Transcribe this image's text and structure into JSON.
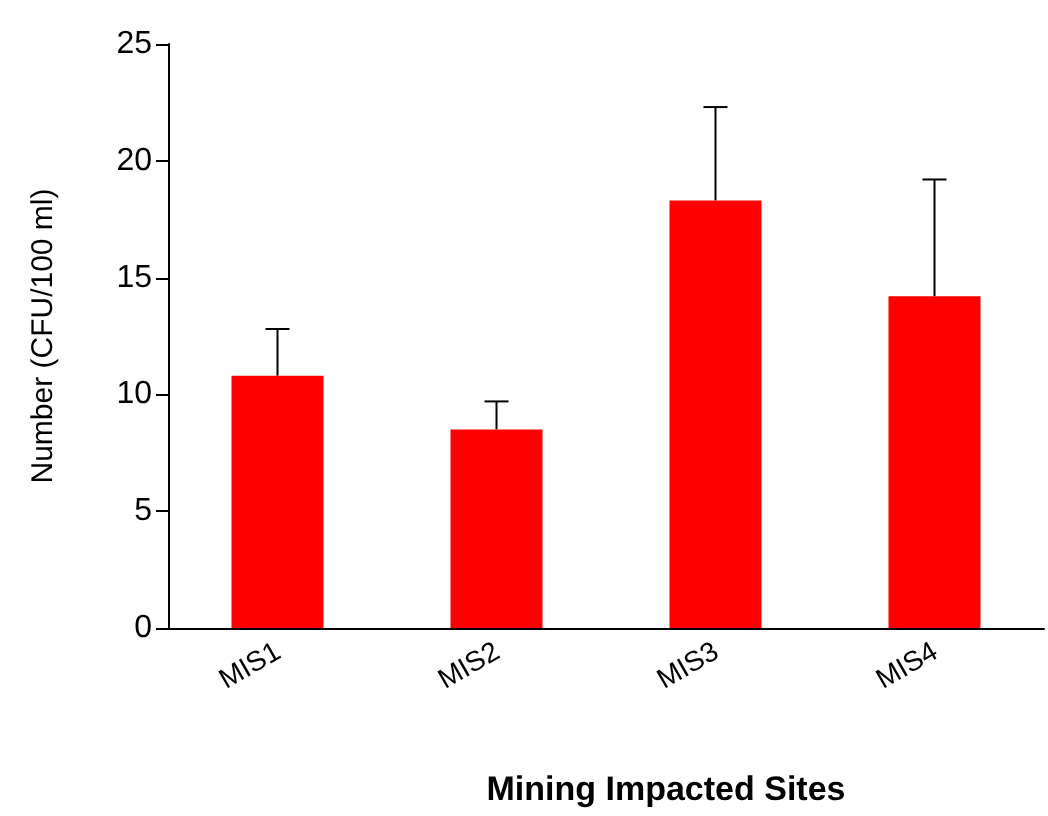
{
  "chart_data": {
    "type": "bar",
    "xlabel": "Mining Impacted Sites",
    "ylabel": "Number (CFU/100 ml)",
    "categories": [
      "MIS1",
      "MIS2",
      "MIS3",
      "MIS4"
    ],
    "values": [
      10.8,
      8.5,
      18.3,
      14.2
    ],
    "errors": [
      [
        10.8,
        12.8
      ],
      [
        8.5,
        9.7
      ],
      [
        18.3,
        22.3
      ],
      [
        14.2,
        19.2
      ]
    ],
    "color": "#ff0000",
    "ylim": [
      0,
      25
    ],
    "yticks": [
      0,
      5,
      10,
      15,
      20,
      25
    ],
    "grid": false
  }
}
